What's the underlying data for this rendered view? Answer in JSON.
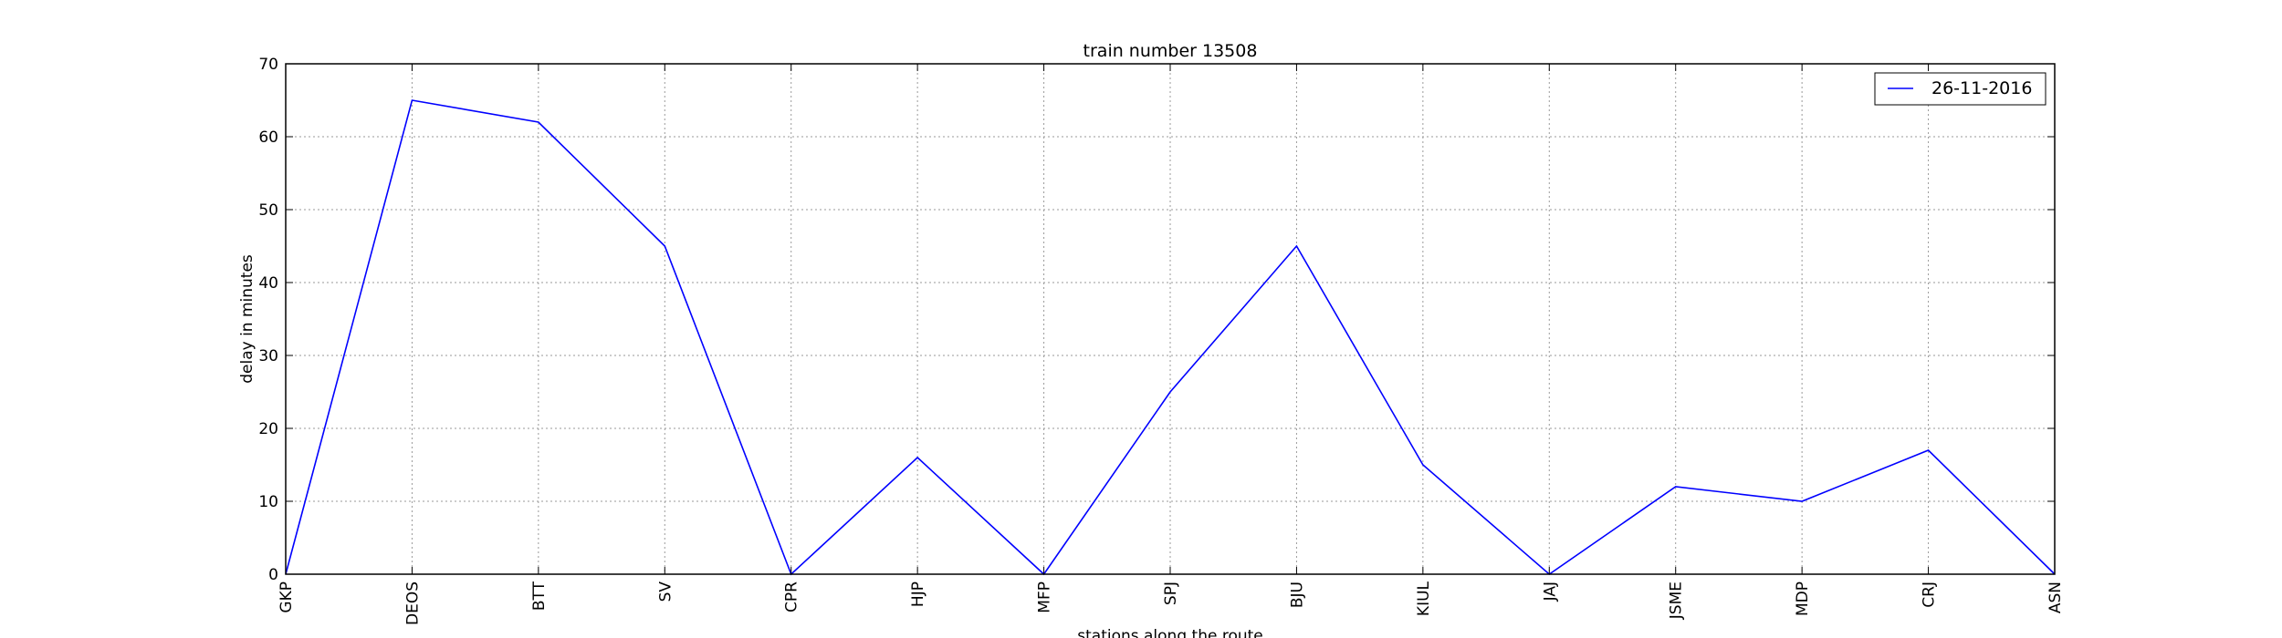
{
  "chart_data": {
    "type": "line",
    "title": "train number 13508",
    "xlabel": "stations along the route",
    "ylabel": "delay in minutes",
    "categories": [
      "GKP",
      "DEOS",
      "BTT",
      "SV",
      "CPR",
      "HJP",
      "MFP",
      "SPJ",
      "BJU",
      "KIUL",
      "JAJ",
      "JSME",
      "MDP",
      "CRJ",
      "ASN"
    ],
    "series": [
      {
        "name": "26-11-2016",
        "color": "#0000ff",
        "values": [
          0,
          65,
          62,
          45,
          0,
          16,
          0,
          25,
          45,
          15,
          0,
          12,
          10,
          17,
          0
        ]
      }
    ],
    "ylim": [
      0,
      70
    ],
    "yticks": [
      "0",
      "10",
      "20",
      "30",
      "40",
      "50",
      "60",
      "70"
    ],
    "grid": true,
    "legend_position": "top-right"
  }
}
